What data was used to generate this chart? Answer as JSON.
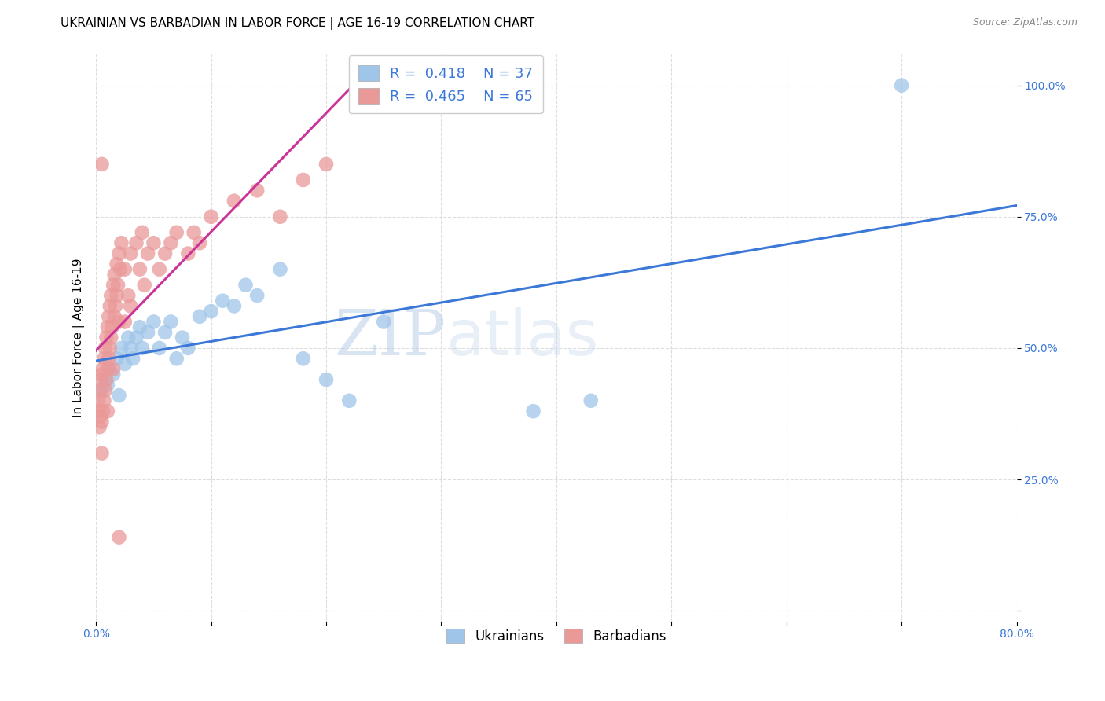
{
  "title": "UKRAINIAN VS BARBADIAN IN LABOR FORCE | AGE 16-19 CORRELATION CHART",
  "source": "Source: ZipAtlas.com",
  "ylabel": "In Labor Force | Age 16-19",
  "xlim": [
    0.0,
    0.8
  ],
  "ylim": [
    -0.02,
    1.06
  ],
  "blue_color": "#9fc5e8",
  "pink_color": "#ea9999",
  "blue_line_color": "#3c78d8",
  "pink_line_color": "#cc3399",
  "background_color": "#ffffff",
  "grid_color": "#dddddd",
  "legend_R_blue": "0.418",
  "legend_N_blue": "37",
  "legend_R_pink": "0.465",
  "legend_N_pink": "65",
  "watermark_zip": "ZIP",
  "watermark_atlas": "atlas",
  "title_fontsize": 11,
  "axis_label_fontsize": 11,
  "tick_fontsize": 10,
  "blue_scatter_x": [
    0.005,
    0.008,
    0.01,
    0.012,
    0.015,
    0.018,
    0.02,
    0.022,
    0.025,
    0.028,
    0.03,
    0.032,
    0.035,
    0.038,
    0.04,
    0.045,
    0.05,
    0.055,
    0.06,
    0.065,
    0.07,
    0.075,
    0.08,
    0.09,
    0.1,
    0.11,
    0.12,
    0.13,
    0.14,
    0.16,
    0.18,
    0.2,
    0.22,
    0.25,
    0.38,
    0.43,
    0.7
  ],
  "blue_scatter_y": [
    0.42,
    0.44,
    0.43,
    0.46,
    0.45,
    0.48,
    0.41,
    0.5,
    0.47,
    0.52,
    0.5,
    0.48,
    0.52,
    0.54,
    0.5,
    0.53,
    0.55,
    0.5,
    0.53,
    0.55,
    0.48,
    0.52,
    0.5,
    0.56,
    0.57,
    0.59,
    0.58,
    0.62,
    0.6,
    0.65,
    0.48,
    0.44,
    0.4,
    0.55,
    0.38,
    0.4,
    1.0
  ],
  "pink_scatter_x": [
    0.002,
    0.002,
    0.003,
    0.003,
    0.004,
    0.004,
    0.005,
    0.005,
    0.005,
    0.006,
    0.006,
    0.007,
    0.007,
    0.008,
    0.008,
    0.009,
    0.009,
    0.01,
    0.01,
    0.01,
    0.011,
    0.011,
    0.012,
    0.012,
    0.013,
    0.013,
    0.014,
    0.015,
    0.015,
    0.016,
    0.016,
    0.017,
    0.018,
    0.018,
    0.019,
    0.02,
    0.02,
    0.021,
    0.022,
    0.025,
    0.025,
    0.028,
    0.03,
    0.03,
    0.035,
    0.038,
    0.04,
    0.042,
    0.045,
    0.05,
    0.055,
    0.06,
    0.065,
    0.07,
    0.08,
    0.085,
    0.09,
    0.1,
    0.12,
    0.14,
    0.16,
    0.18,
    0.2,
    0.005,
    0.02
  ],
  "pink_scatter_y": [
    0.38,
    0.4,
    0.35,
    0.42,
    0.37,
    0.44,
    0.3,
    0.36,
    0.45,
    0.38,
    0.46,
    0.4,
    0.48,
    0.42,
    0.5,
    0.44,
    0.52,
    0.46,
    0.38,
    0.54,
    0.48,
    0.56,
    0.5,
    0.58,
    0.52,
    0.6,
    0.54,
    0.46,
    0.62,
    0.56,
    0.64,
    0.58,
    0.6,
    0.66,
    0.62,
    0.55,
    0.68,
    0.65,
    0.7,
    0.55,
    0.65,
    0.6,
    0.68,
    0.58,
    0.7,
    0.65,
    0.72,
    0.62,
    0.68,
    0.7,
    0.65,
    0.68,
    0.7,
    0.72,
    0.68,
    0.72,
    0.7,
    0.75,
    0.78,
    0.8,
    0.75,
    0.82,
    0.85,
    0.85,
    0.14
  ]
}
